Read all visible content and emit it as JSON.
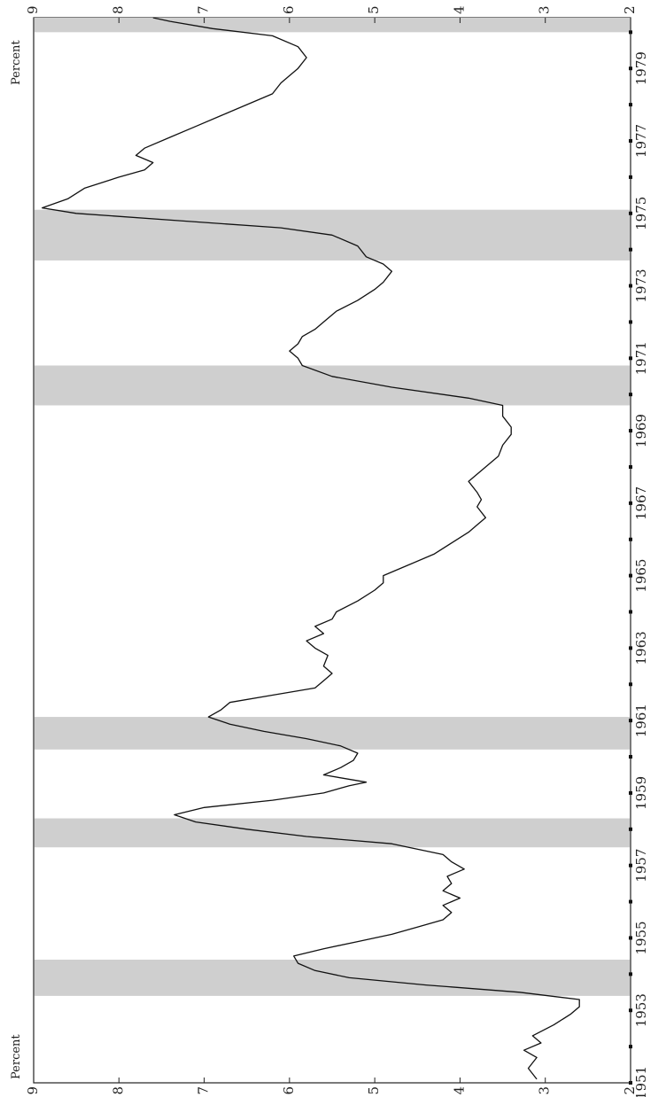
{
  "chart_data": {
    "type": "line",
    "title": "",
    "xlabel": "",
    "ylabel": "Percent",
    "ylabel_right": "Percent",
    "orientation": "rotated 90 degrees clockwise",
    "grid": false,
    "xlim": [
      1951,
      1980.4
    ],
    "ylim": [
      2,
      9
    ],
    "x_tick_labels": [
      "1951",
      "1953",
      "1955",
      "1957",
      "1959",
      "1961",
      "1963",
      "1965",
      "1967",
      "1969",
      "1971",
      "1973",
      "1975",
      "1977",
      "1979"
    ],
    "y_tick_labels": [
      "2",
      "3",
      "4",
      "5",
      "6",
      "7",
      "8",
      "9"
    ],
    "y_tick_labels_right": [
      "2",
      "3",
      "4",
      "5",
      "6",
      "7",
      "8",
      "9"
    ],
    "shaded_periods": [
      [
        1953.4,
        1954.4
      ],
      [
        1957.5,
        1958.3
      ],
      [
        1960.2,
        1961.1
      ],
      [
        1969.7,
        1970.8
      ],
      [
        1973.7,
        1975.1
      ],
      [
        1980.0,
        1980.4
      ]
    ],
    "series": [
      {
        "points": [
          [
            1950.9,
            3.4
          ],
          [
            1951.1,
            3.1
          ],
          [
            1951.4,
            3.2
          ],
          [
            1951.7,
            3.1
          ],
          [
            1951.9,
            3.25
          ],
          [
            1952.1,
            3.05
          ],
          [
            1952.3,
            3.15
          ],
          [
            1952.6,
            2.9
          ],
          [
            1952.9,
            2.7
          ],
          [
            1953.1,
            2.6
          ],
          [
            1953.3,
            2.6
          ],
          [
            1953.5,
            3.3
          ],
          [
            1953.7,
            4.4
          ],
          [
            1953.9,
            5.3
          ],
          [
            1954.1,
            5.7
          ],
          [
            1954.3,
            5.9
          ],
          [
            1954.5,
            5.95
          ],
          [
            1954.7,
            5.6
          ],
          [
            1954.9,
            5.2
          ],
          [
            1955.1,
            4.8
          ],
          [
            1955.3,
            4.5
          ],
          [
            1955.5,
            4.2
          ],
          [
            1955.7,
            4.1
          ],
          [
            1955.9,
            4.2
          ],
          [
            1956.1,
            4.0
          ],
          [
            1956.3,
            4.2
          ],
          [
            1956.5,
            4.1
          ],
          [
            1956.7,
            4.15
          ],
          [
            1956.9,
            3.95
          ],
          [
            1957.1,
            4.1
          ],
          [
            1957.3,
            4.2
          ],
          [
            1957.6,
            4.8
          ],
          [
            1957.8,
            5.8
          ],
          [
            1958.0,
            6.5
          ],
          [
            1958.2,
            7.1
          ],
          [
            1958.4,
            7.35
          ],
          [
            1958.6,
            7.0
          ],
          [
            1958.8,
            6.2
          ],
          [
            1959.0,
            5.6
          ],
          [
            1959.2,
            5.3
          ],
          [
            1959.3,
            5.1
          ],
          [
            1959.5,
            5.6
          ],
          [
            1959.7,
            5.4
          ],
          [
            1959.9,
            5.25
          ],
          [
            1960.1,
            5.2
          ],
          [
            1960.3,
            5.4
          ],
          [
            1960.5,
            5.8
          ],
          [
            1960.7,
            6.3
          ],
          [
            1960.9,
            6.7
          ],
          [
            1961.1,
            6.95
          ],
          [
            1961.3,
            6.8
          ],
          [
            1961.5,
            6.7
          ],
          [
            1961.7,
            6.2
          ],
          [
            1961.9,
            5.7
          ],
          [
            1962.1,
            5.6
          ],
          [
            1962.3,
            5.5
          ],
          [
            1962.5,
            5.6
          ],
          [
            1962.8,
            5.55
          ],
          [
            1963.0,
            5.7
          ],
          [
            1963.2,
            5.8
          ],
          [
            1963.4,
            5.6
          ],
          [
            1963.6,
            5.7
          ],
          [
            1963.8,
            5.5
          ],
          [
            1964.0,
            5.45
          ],
          [
            1964.3,
            5.2
          ],
          [
            1964.6,
            5.0
          ],
          [
            1964.8,
            4.9
          ],
          [
            1965.0,
            4.9
          ],
          [
            1965.3,
            4.6
          ],
          [
            1965.6,
            4.3
          ],
          [
            1965.9,
            4.1
          ],
          [
            1966.2,
            3.9
          ],
          [
            1966.4,
            3.8
          ],
          [
            1966.6,
            3.7
          ],
          [
            1966.9,
            3.8
          ],
          [
            1967.1,
            3.75
          ],
          [
            1967.3,
            3.8
          ],
          [
            1967.6,
            3.9
          ],
          [
            1967.8,
            3.8
          ],
          [
            1968.0,
            3.7
          ],
          [
            1968.3,
            3.55
          ],
          [
            1968.6,
            3.5
          ],
          [
            1968.9,
            3.4
          ],
          [
            1969.1,
            3.4
          ],
          [
            1969.4,
            3.5
          ],
          [
            1969.7,
            3.5
          ],
          [
            1969.9,
            3.9
          ],
          [
            1970.2,
            4.8
          ],
          [
            1970.5,
            5.5
          ],
          [
            1970.8,
            5.85
          ],
          [
            1971.0,
            5.9
          ],
          [
            1971.2,
            6.0
          ],
          [
            1971.4,
            5.9
          ],
          [
            1971.6,
            5.85
          ],
          [
            1971.8,
            5.7
          ],
          [
            1972.0,
            5.6
          ],
          [
            1972.3,
            5.45
          ],
          [
            1972.6,
            5.2
          ],
          [
            1972.9,
            5.0
          ],
          [
            1973.1,
            4.9
          ],
          [
            1973.4,
            4.8
          ],
          [
            1973.6,
            4.9
          ],
          [
            1973.8,
            5.1
          ],
          [
            1974.1,
            5.2
          ],
          [
            1974.4,
            5.5
          ],
          [
            1974.6,
            6.1
          ],
          [
            1974.8,
            7.3
          ],
          [
            1975.0,
            8.5
          ],
          [
            1975.15,
            8.9
          ],
          [
            1975.4,
            8.6
          ],
          [
            1975.7,
            8.4
          ],
          [
            1976.0,
            8.0
          ],
          [
            1976.2,
            7.7
          ],
          [
            1976.4,
            7.6
          ],
          [
            1976.6,
            7.8
          ],
          [
            1976.8,
            7.7
          ],
          [
            1977.1,
            7.4
          ],
          [
            1977.4,
            7.1
          ],
          [
            1977.7,
            6.8
          ],
          [
            1978.0,
            6.5
          ],
          [
            1978.3,
            6.2
          ],
          [
            1978.6,
            6.1
          ],
          [
            1978.8,
            6.0
          ],
          [
            1979.0,
            5.9
          ],
          [
            1979.3,
            5.8
          ],
          [
            1979.6,
            5.9
          ],
          [
            1979.9,
            6.2
          ],
          [
            1980.1,
            6.9
          ],
          [
            1980.3,
            7.4
          ],
          [
            1980.4,
            7.6
          ]
        ]
      }
    ]
  }
}
